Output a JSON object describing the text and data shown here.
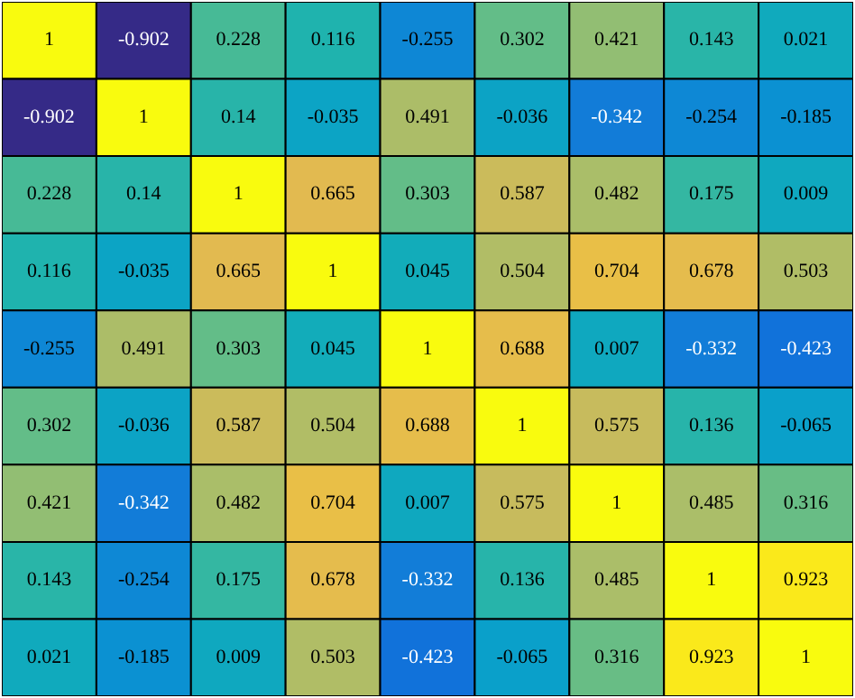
{
  "chart_data": {
    "type": "heatmap",
    "data_labels": true,
    "categories": [
      null,
      null,
      null,
      null,
      null,
      null,
      null,
      null,
      null
    ],
    "y_categories": [
      null,
      null,
      null,
      null,
      null,
      null,
      null,
      null,
      null
    ],
    "cells": [
      [
        1,
        -0.902,
        0.228,
        0.116,
        -0.255,
        0.302,
        0.421,
        0.143,
        0.021
      ],
      [
        -0.902,
        1,
        0.14,
        -0.035,
        0.491,
        -0.036,
        -0.342,
        -0.254,
        -0.185
      ],
      [
        0.228,
        0.14,
        1,
        0.665,
        0.303,
        0.587,
        0.482,
        0.175,
        0.009
      ],
      [
        0.116,
        -0.035,
        0.665,
        1,
        0.045,
        0.504,
        0.704,
        0.678,
        0.503
      ],
      [
        -0.255,
        0.491,
        0.303,
        0.045,
        1,
        0.688,
        0.007,
        -0.332,
        -0.423
      ],
      [
        0.302,
        -0.036,
        0.587,
        0.504,
        0.688,
        1,
        0.575,
        0.136,
        -0.065
      ],
      [
        0.421,
        -0.342,
        0.482,
        0.704,
        0.007,
        0.575,
        1,
        0.485,
        0.316
      ],
      [
        0.143,
        -0.254,
        0.175,
        0.678,
        -0.332,
        0.136,
        0.485,
        1,
        0.923
      ],
      [
        0.021,
        -0.185,
        0.009,
        0.503,
        -0.423,
        -0.065,
        0.316,
        0.923,
        1
      ]
    ]
  }
}
